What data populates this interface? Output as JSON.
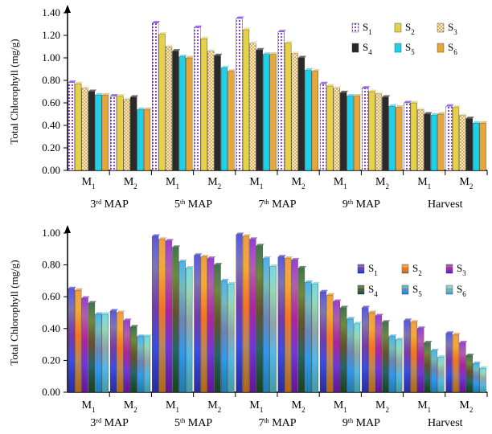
{
  "chart_data": [
    {
      "type": "bar",
      "ylabel": "Total Chlorophyll (mg/g)",
      "ylim": [
        0,
        1.4
      ],
      "yticks": [
        "0.00",
        "0.20",
        "0.40",
        "0.60",
        "0.80",
        "1.00",
        "1.20",
        "1.40"
      ],
      "groups": [
        "3rd MAP",
        "5th MAP",
        "7th MAP",
        "9th MAP",
        "Harvest"
      ],
      "categories": [
        "M1",
        "M2",
        "M1",
        "M2",
        "M1",
        "M2",
        "M1",
        "M2",
        "M1",
        "M2"
      ],
      "legend_position": "top-right",
      "series": [
        {
          "name": "S1",
          "color": "#7b2cf5",
          "values": [
            0.78,
            0.66,
            1.31,
            1.27,
            1.35,
            1.23,
            0.77,
            0.73,
            0.6,
            0.57
          ]
        },
        {
          "name": "S2",
          "color": "#e6d24a",
          "values": [
            0.77,
            0.66,
            1.21,
            1.17,
            1.25,
            1.13,
            0.75,
            0.7,
            0.6,
            0.56
          ]
        },
        {
          "name": "S3",
          "color": "#f3dfae",
          "values": [
            0.73,
            0.63,
            1.1,
            1.06,
            1.13,
            1.04,
            0.73,
            0.68,
            0.54,
            0.49
          ]
        },
        {
          "name": "S4",
          "color": "#2a2a2a",
          "values": [
            0.7,
            0.65,
            1.06,
            1.02,
            1.07,
            1.0,
            0.69,
            0.65,
            0.5,
            0.46
          ]
        },
        {
          "name": "S5",
          "color": "#1fd0e8",
          "values": [
            0.67,
            0.54,
            1.01,
            0.91,
            1.03,
            0.89,
            0.66,
            0.57,
            0.49,
            0.42
          ]
        },
        {
          "name": "S6",
          "color": "#e6a63c",
          "values": [
            0.67,
            0.54,
            1.0,
            0.88,
            1.03,
            0.88,
            0.66,
            0.56,
            0.5,
            0.42
          ]
        }
      ]
    },
    {
      "type": "bar",
      "ylabel": "Total Chlorophyll (mg/g)",
      "ylim": [
        0,
        1.0
      ],
      "yticks": [
        "0.00",
        "0.20",
        "0.40",
        "0.60",
        "0.80",
        "1.00"
      ],
      "groups": [
        "3rd MAP",
        "5th MAP",
        "7th MAP",
        "9th MAP",
        "Harvest"
      ],
      "categories": [
        "M1",
        "M2",
        "M1",
        "M2",
        "M1",
        "M2",
        "M1",
        "M2",
        "M1",
        "M2"
      ],
      "legend_position": "top-right",
      "series": [
        {
          "name": "S1",
          "color": "#3a3ad6",
          "values": [
            0.65,
            0.51,
            0.98,
            0.86,
            0.99,
            0.85,
            0.63,
            0.53,
            0.45,
            0.37
          ]
        },
        {
          "name": "S2",
          "color": "#f08a1a",
          "values": [
            0.64,
            0.5,
            0.96,
            0.85,
            0.98,
            0.84,
            0.61,
            0.5,
            0.44,
            0.36
          ]
        },
        {
          "name": "S3",
          "color": "#8a1ac8",
          "values": [
            0.59,
            0.45,
            0.95,
            0.84,
            0.96,
            0.83,
            0.57,
            0.48,
            0.4,
            0.31
          ]
        },
        {
          "name": "S4",
          "color": "#1f5a2a",
          "values": [
            0.56,
            0.41,
            0.91,
            0.8,
            0.92,
            0.78,
            0.53,
            0.44,
            0.31,
            0.23
          ]
        },
        {
          "name": "S5",
          "color": "#28a6e8",
          "values": [
            0.49,
            0.35,
            0.82,
            0.7,
            0.84,
            0.69,
            0.46,
            0.35,
            0.26,
            0.18
          ]
        },
        {
          "name": "S6",
          "color": "#5ad2dc",
          "values": [
            0.49,
            0.35,
            0.78,
            0.68,
            0.79,
            0.68,
            0.43,
            0.33,
            0.22,
            0.15
          ]
        }
      ]
    }
  ]
}
